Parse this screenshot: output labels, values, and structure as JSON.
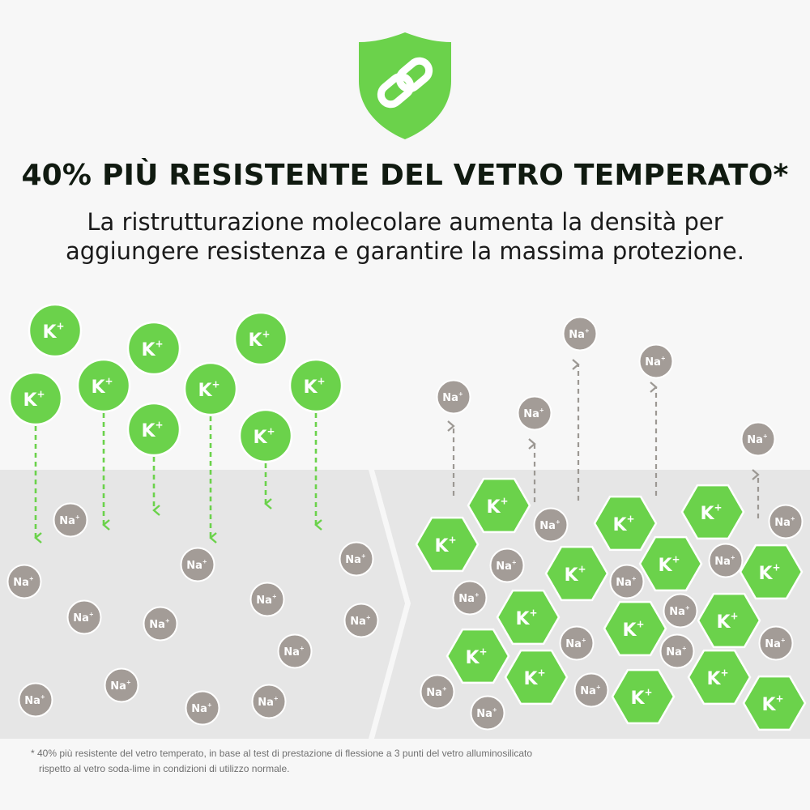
{
  "headline": "40% PIÙ RESISTENTE DEL VETRO TEMPERATO*",
  "subtitle": {
    "line1": "La ristrutturazione molecolare aumenta la densità per",
    "line2": "aggiungere resistenza e garantire la massima protezione."
  },
  "badge_icon": "shield-chain-icon",
  "ion_labels": {
    "potassium": "K",
    "sodium": "Na",
    "charge": "+"
  },
  "footnote": {
    "line1": "* 40% più resistente del vetro temperato, in base al test di prestazione di flessione a 3 punti del vetro alluminosilicato",
    "line2": "rispetto al vetro soda-lime in condizioni di utilizzo normale."
  },
  "colors": {
    "green": "#6bd24b",
    "gray_ion": "#a39c97",
    "glass_bg": "#e6e6e6",
    "text_dark": "#101a10"
  }
}
